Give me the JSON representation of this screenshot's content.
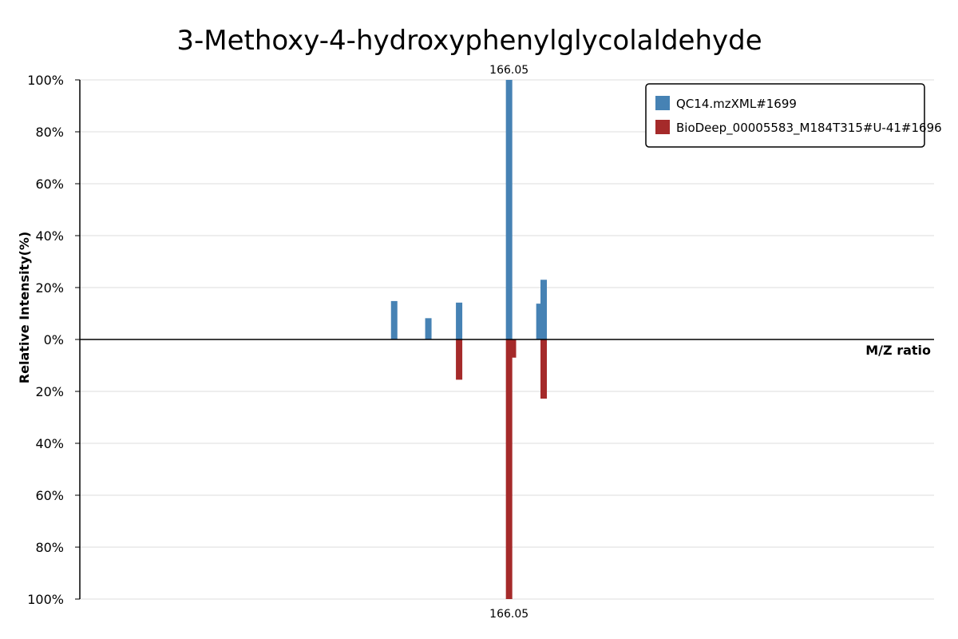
{
  "chart_data": {
    "type": "bar",
    "title": "3-Methoxy-4-hydroxyphenylglycolaldehyde",
    "xlabel": "M/Z ratio",
    "ylabel": "Relative Intensity(%)",
    "y_ticks_top": [
      "100%",
      "80%",
      "60%",
      "40%",
      "20%",
      "0%"
    ],
    "y_ticks_bottom": [
      "20%",
      "40%",
      "60%",
      "80%",
      "100%"
    ],
    "x_range": [
      156.0,
      176.0
    ],
    "ylim": [
      -100,
      100
    ],
    "grid": true,
    "legend_position": "top-right",
    "series": [
      {
        "name": "QC14.mzXML#1699",
        "color": "#4682b4",
        "direction": "up",
        "peaks": [
          {
            "mz": 163.36,
            "intensity": 14.8
          },
          {
            "mz": 164.16,
            "intensity": 8.2
          },
          {
            "mz": 164.88,
            "intensity": 14.2
          },
          {
            "mz": 166.05,
            "intensity": 100
          },
          {
            "mz": 166.76,
            "intensity": 13.8
          },
          {
            "mz": 166.86,
            "intensity": 23.0
          }
        ]
      },
      {
        "name": "BioDeep_00005583_M184T315#U-41#1696",
        "color": "#a52a2a",
        "direction": "down",
        "peaks": [
          {
            "mz": 164.88,
            "intensity": 15.5
          },
          {
            "mz": 166.05,
            "intensity": 100
          },
          {
            "mz": 166.14,
            "intensity": 7.0
          },
          {
            "mz": 166.86,
            "intensity": 22.8
          }
        ]
      }
    ],
    "annotations": {
      "top_peak_label": "166.05",
      "bottom_peak_label": "166.05"
    }
  }
}
